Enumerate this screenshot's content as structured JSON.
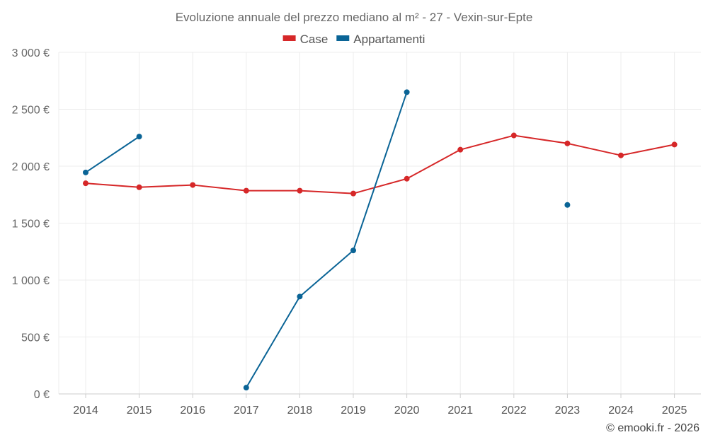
{
  "chart_data": {
    "type": "line",
    "title": "Evoluzione annuale del prezzo mediano al m² - 27 - Vexin-sur-Epte",
    "categories": [
      "2014",
      "2015",
      "2016",
      "2017",
      "2018",
      "2019",
      "2020",
      "2021",
      "2022",
      "2023",
      "2024",
      "2025"
    ],
    "ylim": [
      0,
      3000
    ],
    "yticks": [
      0,
      500,
      1000,
      1500,
      2000,
      2500,
      3000
    ],
    "ytick_labels": [
      "0 €",
      "500 €",
      "1 000 €",
      "1 500 €",
      "2 000 €",
      "2 500 €",
      "3 000 €"
    ],
    "grid": true,
    "legend_position": "top-center",
    "series": [
      {
        "name": "Case",
        "color": "#d62728",
        "values": [
          1850,
          1815,
          1835,
          1785,
          1785,
          1760,
          1890,
          2145,
          2270,
          2200,
          2095,
          2190
        ]
      },
      {
        "name": "Appartamenti",
        "color": "#0a6496",
        "values": [
          1945,
          2260,
          null,
          55,
          855,
          1260,
          2650,
          null,
          null,
          1660,
          null,
          null
        ]
      }
    ]
  },
  "credit": "© emooki.fr - 2026"
}
